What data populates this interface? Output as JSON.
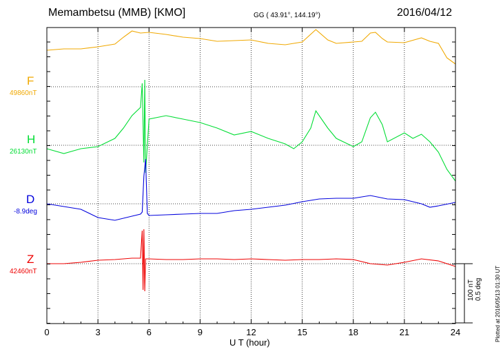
{
  "header": {
    "station": "Memambetsu (MMB)  [KMO]",
    "coords": "GG ( 43.91°, 144.19°)",
    "date": "2016/04/12"
  },
  "footer": {
    "plotted": "Plotted at 2016/05/13 01:30 UT",
    "scale_nt": "100 nT",
    "scale_deg": "0.5 deg"
  },
  "chart_data": {
    "type": "line",
    "xlabel": "U T (hour)",
    "xlim": [
      0,
      24
    ],
    "x_ticks": [
      "0",
      "3",
      "6",
      "9",
      "12",
      "15",
      "18",
      "21",
      "24"
    ],
    "grid": true,
    "series": [
      {
        "name": "F",
        "baseline_label": "49860nT",
        "color": "#f0a800",
        "unit": "nT",
        "baseline": 49860,
        "x": [
          0,
          1,
          2,
          3,
          4,
          4.5,
          5,
          5.5,
          6,
          7,
          8,
          9,
          10,
          11,
          12,
          13,
          14,
          15,
          15.8,
          16.5,
          17,
          18,
          18.5,
          19,
          19.3,
          19.7,
          20,
          21,
          22,
          22.5,
          23,
          23.5,
          24
        ],
        "y": [
          53,
          55,
          55,
          58,
          62,
          72,
          81,
          78,
          79,
          76,
          72,
          70,
          66,
          67,
          68,
          63,
          61,
          65,
          83,
          68,
          63,
          65,
          66,
          78,
          79,
          70,
          65,
          64,
          71,
          66,
          63,
          42,
          33
        ]
      },
      {
        "name": "H",
        "baseline_label": "26130nT",
        "color": "#00dd33",
        "unit": "nT",
        "baseline": 26130,
        "x": [
          0,
          1,
          2,
          3,
          4,
          4.5,
          5,
          5.5,
          5.6,
          5.7,
          5.75,
          5.8,
          6,
          7,
          8,
          9,
          10,
          11,
          12,
          13,
          14,
          14.5,
          15,
          15.5,
          15.8,
          16.5,
          17,
          18,
          18.5,
          19,
          19.3,
          19.7,
          20,
          21,
          21.5,
          22,
          22.5,
          23,
          23.5,
          24
        ],
        "y": [
          -5,
          -12,
          -5,
          -2,
          10,
          25,
          43,
          55,
          90,
          -25,
          95,
          -40,
          38,
          43,
          38,
          33,
          25,
          15,
          20,
          10,
          2,
          -5,
          5,
          25,
          50,
          25,
          10,
          -2,
          5,
          40,
          48,
          30,
          5,
          18,
          10,
          16,
          5,
          -10,
          -35,
          -52
        ]
      },
      {
        "name": "D",
        "baseline_label": "-8.9deg",
        "color": "#0000dd",
        "unit": "deg",
        "baseline": -8.9,
        "x": [
          0,
          1,
          2,
          3,
          4,
          5,
          5.5,
          5.6,
          5.7,
          5.8,
          5.9,
          6,
          7,
          8,
          9,
          10,
          11,
          12,
          13,
          14,
          15,
          16,
          17,
          18,
          19,
          20,
          21,
          22,
          22.5,
          23,
          24
        ],
        "y": [
          0,
          -4,
          -8,
          -20,
          -24,
          -18,
          -15,
          -12,
          40,
          65,
          -14,
          -17,
          -16,
          -15,
          -14,
          -14,
          -10,
          -8,
          -5,
          -2,
          3,
          7,
          8,
          8,
          12,
          7,
          6,
          0,
          -5,
          -3,
          2
        ]
      },
      {
        "name": "Z",
        "baseline_label": "42460nT",
        "color": "#ee0000",
        "unit": "nT",
        "baseline": 42460,
        "x": [
          0,
          1,
          2,
          3,
          4,
          5,
          5.5,
          5.6,
          5.65,
          5.7,
          5.75,
          5.8,
          6,
          7,
          8,
          9,
          10,
          11,
          12,
          13,
          14,
          15,
          16,
          17,
          18,
          19,
          20,
          21,
          22,
          23,
          24
        ],
        "y": [
          0,
          0,
          2,
          5,
          6,
          8,
          8,
          48,
          -38,
          50,
          -40,
          7,
          7,
          6,
          6,
          7,
          7,
          6,
          7,
          6,
          5,
          6,
          6,
          7,
          6,
          0,
          -2,
          2,
          7,
          4,
          -4
        ]
      }
    ]
  }
}
